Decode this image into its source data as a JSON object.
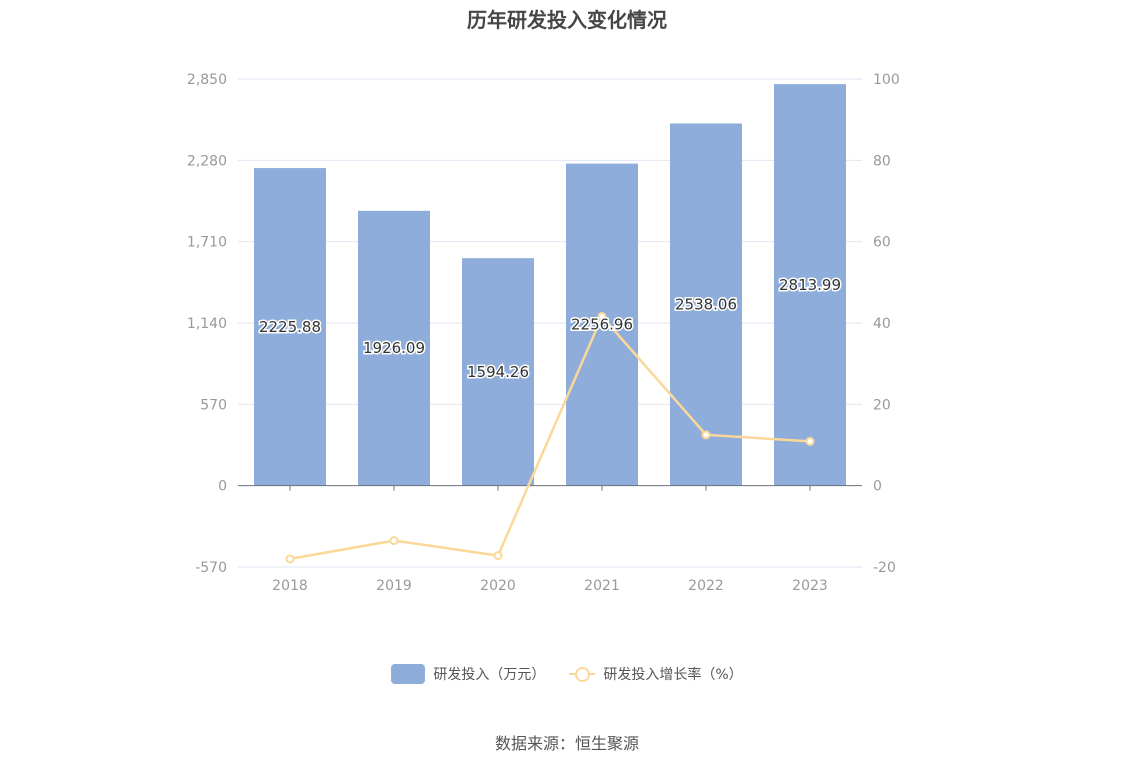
{
  "colors": {
    "bar": "#8EADDA",
    "line": "#FBD898",
    "grid": "#E3E6F3",
    "axis": "#6E7079",
    "tick_text": "#999999"
  },
  "chart_data": {
    "type": "bar",
    "title": "历年研发投入变化情况",
    "categories": [
      "2018",
      "2019",
      "2020",
      "2021",
      "2022",
      "2023"
    ],
    "series": [
      {
        "name": "研发投入（万元）",
        "type": "bar",
        "axis": "left",
        "values": [
          2225.88,
          1926.09,
          1594.26,
          2256.96,
          2538.06,
          2813.99
        ]
      },
      {
        "name": "研发投入增长率（%）",
        "type": "line",
        "axis": "right",
        "values": [
          -18,
          -13.5,
          -17.2,
          41.6,
          12.5,
          10.9
        ]
      }
    ],
    "y_left": {
      "ticks": [
        "2,850",
        "2,280",
        "1,710",
        "1,140",
        "570",
        "0",
        "-570"
      ],
      "ylim": [
        -570,
        2850
      ]
    },
    "y_right": {
      "ticks": [
        "100",
        "80",
        "60",
        "40",
        "20",
        "0",
        "-20"
      ],
      "ylim": [
        -20,
        100
      ]
    },
    "data_labels": [
      "2225.88",
      "1926.09",
      "1594.26",
      "2256.96",
      "2538.06",
      "2813.99"
    ],
    "legend_position": "bottom",
    "grid": true
  },
  "legend": {
    "bar_label": "研发投入（万元）",
    "line_label": "研发投入增长率（%）"
  },
  "source": "数据来源：恒生聚源"
}
